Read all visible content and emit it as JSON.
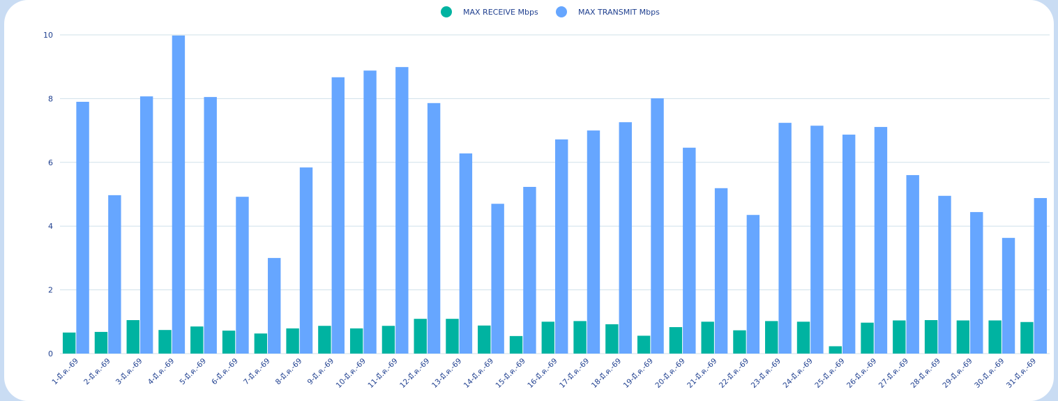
{
  "chart_data": {
    "type": "bar",
    "categories": [
      "1-มี.ค.-69",
      "2-มี.ค.-69",
      "3-มี.ค.-69",
      "4-มี.ค.-69",
      "5-มี.ค.-69",
      "6-มี.ค.-69",
      "7-มี.ค.-69",
      "8-มี.ค.-69",
      "9-มี.ค.-69",
      "10-มี.ค.-69",
      "11-มี.ค.-69",
      "12-มี.ค.-69",
      "13-มี.ค.-69",
      "14-มี.ค.-69",
      "15-มี.ค.-69",
      "16-มี.ค.-69",
      "17-มี.ค.-69",
      "18-มี.ค.-69",
      "19-มี.ค.-69",
      "20-มี.ค.-69",
      "21-มี.ค.-69",
      "22-มี.ค.-69",
      "23-มี.ค.-69",
      "24-มี.ค.-69",
      "25-มี.ค.-69",
      "26-มี.ค.-69",
      "27-มี.ค.-69",
      "28-มี.ค.-69",
      "29-มี.ค.-69",
      "30-มี.ค.-69",
      "31-มี.ค.-69"
    ],
    "series": [
      {
        "name": "MAX RECEIVE Mbps",
        "color": "#00b3a1",
        "values": [
          0.66,
          0.68,
          1.05,
          0.74,
          0.85,
          0.72,
          0.63,
          0.79,
          0.87,
          0.79,
          0.87,
          1.09,
          1.09,
          0.88,
          0.55,
          1.0,
          1.02,
          0.92,
          0.56,
          0.83,
          1.0,
          0.73,
          1.02,
          1.0,
          0.23,
          0.97,
          1.04,
          1.05,
          1.04,
          1.04,
          0.99
        ]
      },
      {
        "name": "MAX TRANSMIT Mbps",
        "color": "#66a6ff",
        "values": [
          7.9,
          4.97,
          8.07,
          9.98,
          8.05,
          4.92,
          3.0,
          5.84,
          8.67,
          8.88,
          8.99,
          7.86,
          6.28,
          4.7,
          5.23,
          6.72,
          7.0,
          7.26,
          8.01,
          6.46,
          5.19,
          4.35,
          7.24,
          7.15,
          6.87,
          7.11,
          5.6,
          4.95,
          4.44,
          3.63,
          4.88
        ]
      }
    ],
    "ylim": [
      0,
      10
    ],
    "yticks": [
      0,
      2,
      4,
      6,
      8,
      10
    ],
    "grid": true,
    "legend": "top"
  }
}
